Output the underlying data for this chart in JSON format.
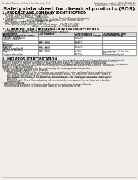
{
  "bg_color": "#f0ede8",
  "header_left": "Product Name: Lithium Ion Battery Cell",
  "header_right1": "Publication number: SBP-001 00019",
  "header_right2": "Established / Revision: Dec.7.2016",
  "title": "Safety data sheet for chemical products (SDS)",
  "s1_title": "1. PRODUCT AND COMPANY IDENTIFICATION",
  "s1_lines": [
    "• Product name: Lithium Ion Battery Cell",
    "• Product code: Cylindrical-type cell",
    "    (SY-18650L, SY-18650L, SY-B650A)",
    "• Company name:     Sanyo Electric Co., Ltd., Mobile Energy Company",
    "• Address:              2001 Kamiyashiro, Sumoto-City, Hyogo, Japan",
    "• Telephone number:  +81-799-20-4111",
    "• Fax number: +81-799-26-4129",
    "• Emergency telephone number (Weekdays) +81-799-20-3562",
    "                                      (Night and holiday) +81-799-26-4129"
  ],
  "s2_title": "2. COMPOSITION / INFORMATION ON INGREDIENTS",
  "s2_prep": "• Substance or preparation: Preparation",
  "s2_info": "  • Information about the chemical nature of product:",
  "th": [
    "Component\nChemical/chemical name\nSeveral name",
    "CAS number",
    "Concentration /\nConcentration range",
    "Classification and\nhazard labeling"
  ],
  "td_col1": [
    "Lithium cobalt oxide\n(LiCoO2/LiNiO2/)",
    "Iron",
    "Aluminum",
    "Graphite\n(Mixed graphite-1)\n(Al-film graphite-1)",
    "Copper",
    "Organic electrolyte"
  ],
  "td_col2": [
    "-",
    "7439-89-6\n7429-90-5",
    "",
    "7782-42-5\n7782-40-3",
    "7440-50-8",
    "-"
  ],
  "td_col3": [
    "30-60%",
    "10-30%\n2-8%",
    "",
    "10-20%",
    "5-15%",
    "10-20%"
  ],
  "td_col4": [
    "-",
    "",
    "-",
    "",
    "Sensitization of the skin\ngroup No.2",
    "Inflammable liquid"
  ],
  "s3_title": "3. HAZARDS IDENTIFICATION",
  "s3_para1": "For the battery cell, chemical materials are stored in a hermetically sealed metal case, designed to withstand",
  "s3_para2": "temperatures and (pressure-temperature) during normal use. As a result, during normal use, there is no",
  "s3_para3": "physical danger of ignition or explosion and there is no danger of hazardous materials leakage.",
  "s3_para4": "  However, if exposed to a fire, added mechanical shocks, decomposition, ambient electric without any measures,",
  "s3_para5": "the gas trouble cannot be operated. The battery cell case will be breached of the extreme, hazardous",
  "s3_para6": "materials may be released.",
  "s3_para7": "  Moreover, if heated strongly by the surrounding fire, some gas may be emitted.",
  "s3_b1": "• Most important hazard and effects:",
  "s3_human": "Human health effects:",
  "s3_h1": "    Inhalation: The release of the electrolyte has an anesthesia action and stimulates a respiratory tract.",
  "s3_h2": "    Skin contact: The release of the electrolyte stimulates a skin. The electrolyte skin contact causes a",
  "s3_h3": "    sore and stimulation on the skin.",
  "s3_h4": "    Eye contact: The release of the electrolyte stimulates eyes. The electrolyte eye contact causes a sore",
  "s3_h5": "    and stimulation on the eye. Especially, a substance that causes a strong inflammation of the eye is",
  "s3_h6": "    contained.",
  "s3_h7": "    Environmental effects: Since a battery cell remains in the environment, do not throw out it into the",
  "s3_h8": "    environment.",
  "s3_b2": "• Specific hazards:",
  "s3_s1": "  If the electrolyte contacts with water, it will generate detrimental hydrogen fluoride.",
  "s3_s2": "  Since the lead-electrolyte is inflammable liquid, do not bring close to fire."
}
